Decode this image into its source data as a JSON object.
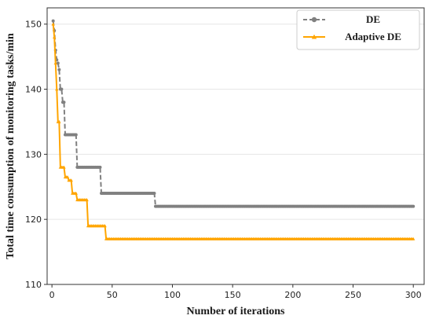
{
  "chart_data": {
    "type": "line",
    "xlabel": "Number of iterations",
    "ylabel": "Total time consumption of monitoring tasks/min",
    "xlim": [
      -4,
      309
    ],
    "ylim": [
      110,
      152.5
    ],
    "xticks": [
      0,
      50,
      100,
      150,
      200,
      250,
      300
    ],
    "yticks": [
      110,
      120,
      130,
      140,
      150
    ],
    "grid": "horizontal",
    "legend_position": "top-right",
    "series": [
      {
        "name": "DE",
        "color": "#808080",
        "line_style": "dashed",
        "marker": "circle",
        "x": [
          1,
          2,
          3,
          4,
          5,
          6,
          7,
          8,
          9,
          10,
          11,
          20,
          21,
          40,
          41,
          85,
          86,
          300
        ],
        "y": [
          150.5,
          149,
          146,
          144.5,
          144,
          143,
          140,
          140,
          138,
          138,
          133,
          133,
          128,
          128,
          124,
          124,
          122,
          122
        ]
      },
      {
        "name": "Adaptive DE",
        "color": "#FFA500",
        "line_style": "solid",
        "marker": "triangle",
        "x": [
          1,
          2,
          3,
          4,
          5,
          6,
          7,
          10,
          11,
          13,
          14,
          16,
          17,
          20,
          21,
          25,
          26,
          29,
          30,
          44,
          45,
          300
        ],
        "y": [
          150,
          148,
          144,
          140,
          135,
          135,
          128,
          128,
          126.5,
          126.5,
          126,
          126,
          124,
          124,
          123,
          123,
          123,
          123,
          119,
          119,
          117,
          117
        ]
      }
    ]
  }
}
